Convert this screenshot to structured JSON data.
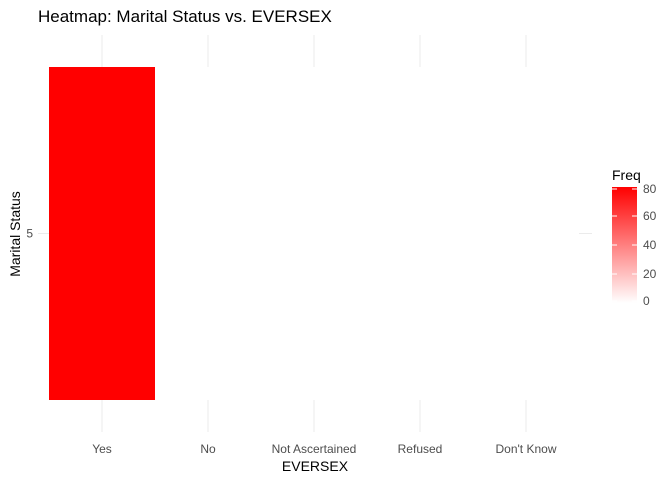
{
  "chart_data": {
    "type": "heatmap",
    "title": "Heatmap: Marital Status vs. EVERSEX",
    "xlabel": "EVERSEX",
    "ylabel": "Marital Status",
    "x_categories": [
      "Yes",
      "No",
      "Not Ascertained",
      "Refused",
      "Don't Know"
    ],
    "y_categories": [
      "5"
    ],
    "cells": [
      {
        "x": "Yes",
        "y": "5",
        "value": 80
      },
      {
        "x": "No",
        "y": "5",
        "value": 0
      },
      {
        "x": "Not Ascertained",
        "y": "5",
        "value": 0
      },
      {
        "x": "Refused",
        "y": "5",
        "value": 0
      },
      {
        "x": "Don't Know",
        "y": "5",
        "value": 0
      }
    ],
    "legend": {
      "title": "Freq",
      "ticks": [
        0,
        20,
        40,
        60,
        80
      ],
      "low_color": "#ffffff",
      "high_color": "#ff0000",
      "placement": "right"
    },
    "grid": true
  }
}
